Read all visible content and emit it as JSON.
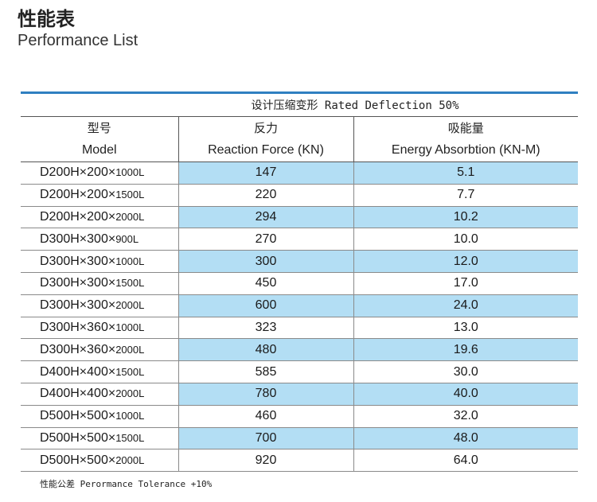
{
  "header": {
    "title_cn": "性能表",
    "title_en": "Performance List"
  },
  "table": {
    "deflection_label": "设计压缩变形  Rated Deflection 50%",
    "columns": [
      {
        "cn": "型号",
        "en": "Model"
      },
      {
        "cn": "反力",
        "en": "Reaction Force (KN)"
      },
      {
        "cn": "吸能量",
        "en": "Energy Absorbtion (KN-M)"
      }
    ],
    "rows": [
      {
        "model_a": "D200H×200×",
        "model_b": "1000L",
        "force": "147",
        "energy": "5.1"
      },
      {
        "model_a": "D200H×200×",
        "model_b": "1500L",
        "force": "220",
        "energy": "7.7"
      },
      {
        "model_a": "D200H×200×",
        "model_b": "2000L",
        "force": "294",
        "energy": "10.2"
      },
      {
        "model_a": "D300H×300×",
        "model_b": "900L",
        "force": "270",
        "energy": "10.0"
      },
      {
        "model_a": "D300H×300×",
        "model_b": "1000L",
        "force": "300",
        "energy": "12.0"
      },
      {
        "model_a": "D300H×300×",
        "model_b": "1500L",
        "force": "450",
        "energy": "17.0"
      },
      {
        "model_a": "D300H×300×",
        "model_b": "2000L",
        "force": "600",
        "energy": "24.0"
      },
      {
        "model_a": "D300H×360×",
        "model_b": "1000L",
        "force": "323",
        "energy": "13.0"
      },
      {
        "model_a": "D300H×360×",
        "model_b": "2000L",
        "force": "480",
        "energy": "19.6"
      },
      {
        "model_a": "D400H×400×",
        "model_b": "1500L",
        "force": "585",
        "energy": "30.0"
      },
      {
        "model_a": "D400H×400×",
        "model_b": "2000L",
        "force": "780",
        "energy": "40.0"
      },
      {
        "model_a": "D500H×500×",
        "model_b": "1000L",
        "force": "460",
        "energy": "32.0"
      },
      {
        "model_a": "D500H×500×",
        "model_b": "1500L",
        "force": "700",
        "energy": "48.0"
      },
      {
        "model_a": "D500H×500×",
        "model_b": "2000L",
        "force": "920",
        "energy": "64.0"
      }
    ]
  },
  "footnote": "性能公差 Perormance Tolerance +10%",
  "colors": {
    "accent_rule": "#2f7fc1",
    "row_shade": "#b3def4"
  }
}
